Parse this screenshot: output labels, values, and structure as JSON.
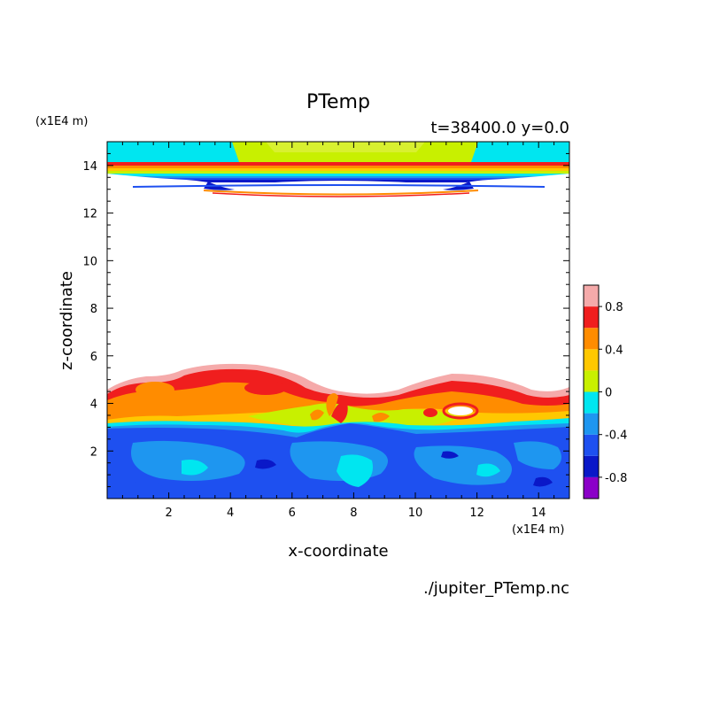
{
  "chart_data": {
    "type": "contour",
    "title": "PTemp",
    "time_label": "t=38400.0 y=0.0",
    "xlabel": "x-coordinate",
    "ylabel": "z-coordinate",
    "x_unit": "(x1E4 m)",
    "y_unit": "(x1E4 m)",
    "xlim": [
      0,
      15
    ],
    "ylim": [
      0,
      15
    ],
    "xticks": [
      2,
      4,
      6,
      8,
      10,
      12,
      14
    ],
    "yticks": [
      2,
      4,
      6,
      8,
      10,
      12,
      14
    ],
    "source_file": "./jupiter_PTemp.nc",
    "colorbar": {
      "min": -1.0,
      "max": 1.0,
      "levels": [
        {
          "lo": -1.0,
          "hi": -0.8,
          "color": "#8b00c8"
        },
        {
          "lo": -0.8,
          "hi": -0.6,
          "color": "#0a18c8"
        },
        {
          "lo": -0.6,
          "hi": -0.4,
          "color": "#1e50f0"
        },
        {
          "lo": -0.4,
          "hi": -0.2,
          "color": "#1e96f0"
        },
        {
          "lo": -0.2,
          "hi": 0.0,
          "color": "#00e6f0"
        },
        {
          "lo": 0.0,
          "hi": 0.2,
          "color": "#c8f000"
        },
        {
          "lo": 0.2,
          "hi": 0.4,
          "color": "#ffc800"
        },
        {
          "lo": 0.4,
          "hi": 0.6,
          "color": "#ff8c00"
        },
        {
          "lo": 0.6,
          "hi": 0.8,
          "color": "#f01e1e"
        },
        {
          "lo": 0.8,
          "hi": 1.0,
          "color": "#f5aaaa"
        }
      ],
      "tick_labels": [
        "0.8",
        "0.4",
        "0",
        "-0.4",
        "-0.8"
      ],
      "tick_values": [
        0.8,
        0.4,
        0.0,
        -0.4,
        -0.8
      ]
    }
  }
}
